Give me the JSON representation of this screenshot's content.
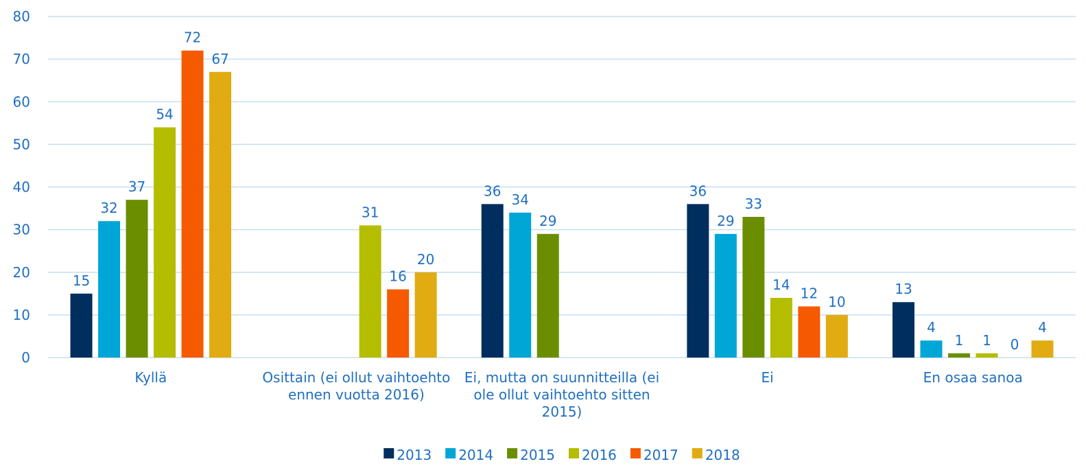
{
  "chart_data": {
    "type": "bar",
    "categories": [
      "Kyllä",
      "Osittain (ei ollut vaihtoehto ennen vuotta 2016)",
      "Ei, mutta on suunnitteilla (ei ole ollut vaihtoehto sitten 2015)",
      "Ei",
      "En osaa sanoa"
    ],
    "series": [
      {
        "name": "2013",
        "color": "#002e5f",
        "values": [
          15,
          null,
          36,
          36,
          13
        ]
      },
      {
        "name": "2014",
        "color": "#00a6d6",
        "values": [
          32,
          null,
          34,
          29,
          4
        ]
      },
      {
        "name": "2015",
        "color": "#6b8e00",
        "values": [
          37,
          null,
          29,
          33,
          1
        ]
      },
      {
        "name": "2016",
        "color": "#b5bd00",
        "values": [
          54,
          31,
          null,
          14,
          1
        ]
      },
      {
        "name": "2017",
        "color": "#f55a00",
        "values": [
          72,
          16,
          null,
          12,
          0
        ]
      },
      {
        "name": "2018",
        "color": "#e0ac12",
        "values": [
          67,
          20,
          null,
          10,
          4
        ]
      }
    ],
    "ylim": [
      0,
      80
    ],
    "yticks": [
      0,
      10,
      20,
      30,
      40,
      50,
      60,
      70,
      80
    ],
    "grid": true,
    "legend": "bottom"
  }
}
